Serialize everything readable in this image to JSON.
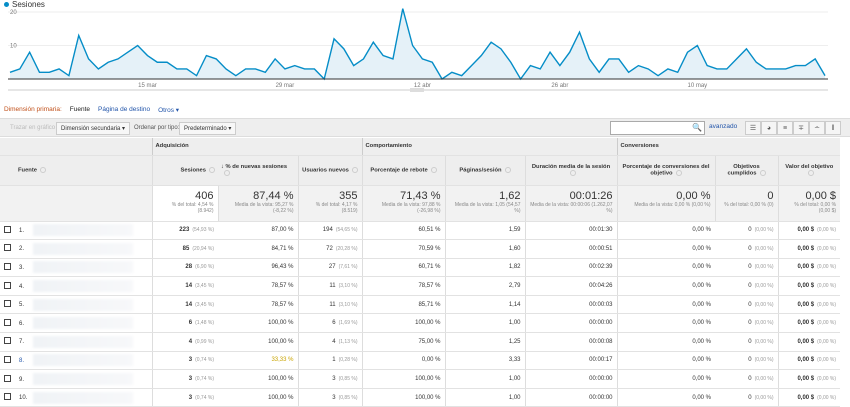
{
  "chart_data": {
    "type": "area",
    "series": [
      {
        "name": "Sesiones",
        "color": "#058dc7",
        "values": [
          2,
          3,
          8,
          2,
          2,
          3,
          1,
          13,
          6,
          3,
          5,
          6,
          8,
          10,
          7,
          5,
          5,
          3,
          3,
          1,
          7,
          6,
          3,
          1,
          3,
          3,
          2,
          6,
          3,
          4,
          3,
          3,
          0,
          12,
          9,
          4,
          6,
          11,
          7,
          6,
          21,
          10,
          6,
          5,
          0,
          2,
          1,
          4,
          7,
          11,
          9,
          5,
          0,
          4,
          3,
          8,
          4,
          8,
          14,
          6,
          2,
          6,
          6,
          2,
          4,
          3,
          1,
          3,
          2,
          8,
          10,
          4,
          3,
          3,
          6,
          9,
          5,
          3,
          3,
          3,
          4,
          4,
          6,
          1
        ]
      }
    ],
    "x_start": "1 mar",
    "x_end": "23 may",
    "x_ticks": [
      "15 mar",
      "29 mar",
      "12 abr",
      "26 abr",
      "10 may"
    ],
    "y_ticks": [
      "10",
      "20"
    ],
    "ylim": [
      0,
      20
    ],
    "grid": true,
    "legend": "top-left"
  },
  "dimension": {
    "label": "Dimensión primaria:",
    "current": "Fuente",
    "links": [
      "Página de destino",
      "Otros ▾"
    ]
  },
  "toolbar": {
    "plot": "Trazar en gráfico",
    "secondary": "Dimensión secundaria ▾",
    "sort_label": "Ordenar por tipo:",
    "sort_value": "Predeterminado ▾",
    "search_placeholder": "",
    "advanced": "avanzado",
    "search_icon": "magnifier"
  },
  "groups": [
    "Adquisición",
    "Comportamiento",
    "Conversiones"
  ],
  "columns": [
    "Fuente",
    "Sesiones",
    "% de nuevas sesiones",
    "Usuarios nuevos",
    "Porcentaje de rebote",
    "Páginas/sesión",
    "Duración media de la sesión",
    "Porcentaje de conversiones del objetivo",
    "Objetivos cumplidos",
    "Valor del objetivo"
  ],
  "totals": [
    {
      "v": "406",
      "s": "% del total: 4,54 % (8.942)"
    },
    {
      "v": "87,44 %",
      "s": "Media de la vista: 95,27 % (-8,22 %)"
    },
    {
      "v": "355",
      "s": "% del total: 4,17 % (8.519)"
    },
    {
      "v": "71,43 %",
      "s": "Media de la vista: 97,88 % (-26,98 %)"
    },
    {
      "v": "1,62",
      "s": "Media de la vista: 1,05 (54,57 %)"
    },
    {
      "v": "00:01:26",
      "s": "Media de la vista: 00:00:06 (1.262,07 %)"
    },
    {
      "v": "0,00 %",
      "s": "Media de la vista: 0,00 % (0,00 %)"
    },
    {
      "v": "0",
      "s": "% del total: 0,00 % (0)"
    },
    {
      "v": "0,00 $",
      "s": "% del total: 0,00 % (0,00 $)"
    }
  ],
  "rows": [
    {
      "i": "1.",
      "ses": "223",
      "sesp": "(54,93 %)",
      "nue": "87,00 %",
      "usr": "194",
      "usrp": "(54,65 %)",
      "reb": "60,51 %",
      "pag": "1,59",
      "dur": "00:01:30",
      "conv": "0,00 %",
      "obj": "0",
      "objp": "(0,00 %)",
      "val": "0,00 $",
      "valp": "(0,00 %)"
    },
    {
      "i": "2.",
      "ses": "85",
      "sesp": "(20,94 %)",
      "nue": "84,71 %",
      "usr": "72",
      "usrp": "(20,28 %)",
      "reb": "70,59 %",
      "pag": "1,60",
      "dur": "00:00:51",
      "conv": "0,00 %",
      "obj": "0",
      "objp": "(0,00 %)",
      "val": "0,00 $",
      "valp": "(0,00 %)"
    },
    {
      "i": "3.",
      "ses": "28",
      "sesp": "(6,90 %)",
      "nue": "96,43 %",
      "usr": "27",
      "usrp": "(7,61 %)",
      "reb": "60,71 %",
      "pag": "1,82",
      "dur": "00:02:39",
      "conv": "0,00 %",
      "obj": "0",
      "objp": "(0,00 %)",
      "val": "0,00 $",
      "valp": "(0,00 %)"
    },
    {
      "i": "4.",
      "ses": "14",
      "sesp": "(3,45 %)",
      "nue": "78,57 %",
      "usr": "11",
      "usrp": "(3,10 %)",
      "reb": "78,57 %",
      "pag": "2,79",
      "dur": "00:04:26",
      "conv": "0,00 %",
      "obj": "0",
      "objp": "(0,00 %)",
      "val": "0,00 $",
      "valp": "(0,00 %)"
    },
    {
      "i": "5.",
      "ses": "14",
      "sesp": "(3,45 %)",
      "nue": "78,57 %",
      "usr": "11",
      "usrp": "(3,10 %)",
      "reb": "85,71 %",
      "pag": "1,14",
      "dur": "00:00:03",
      "conv": "0,00 %",
      "obj": "0",
      "objp": "(0,00 %)",
      "val": "0,00 $",
      "valp": "(0,00 %)"
    },
    {
      "i": "6.",
      "ses": "6",
      "sesp": "(1,48 %)",
      "nue": "100,00 %",
      "usr": "6",
      "usrp": "(1,69 %)",
      "reb": "100,00 %",
      "pag": "1,00",
      "dur": "00:00:00",
      "conv": "0,00 %",
      "obj": "0",
      "objp": "(0,00 %)",
      "val": "0,00 $",
      "valp": "(0,00 %)"
    },
    {
      "i": "7.",
      "ses": "4",
      "sesp": "(0,99 %)",
      "nue": "100,00 %",
      "usr": "4",
      "usrp": "(1,13 %)",
      "reb": "75,00 %",
      "pag": "1,25",
      "dur": "00:00:08",
      "conv": "0,00 %",
      "obj": "0",
      "objp": "(0,00 %)",
      "val": "0,00 $",
      "valp": "(0,00 %)"
    },
    {
      "i": "8.",
      "ses": "3",
      "sesp": "(0,74 %)",
      "nue": "33,33 %",
      "usr": "1",
      "usrp": "(0,28 %)",
      "reb": "0,00 %",
      "pag": "3,33",
      "dur": "00:00:17",
      "conv": "0,00 %",
      "obj": "0",
      "objp": "(0,00 %)",
      "val": "0,00 $",
      "valp": "(0,00 %)"
    },
    {
      "i": "9.",
      "ses": "3",
      "sesp": "(0,74 %)",
      "nue": "100,00 %",
      "usr": "3",
      "usrp": "(0,85 %)",
      "reb": "100,00 %",
      "pag": "1,00",
      "dur": "00:00:00",
      "conv": "0,00 %",
      "obj": "0",
      "objp": "(0,00 %)",
      "val": "0,00 $",
      "valp": "(0,00 %)"
    },
    {
      "i": "10.",
      "ses": "3",
      "sesp": "(0,74 %)",
      "nue": "100,00 %",
      "usr": "3",
      "usrp": "(0,85 %)",
      "reb": "100,00 %",
      "pag": "1,00",
      "dur": "00:00:00",
      "conv": "0,00 %",
      "obj": "0",
      "objp": "(0,00 %)",
      "val": "0,00 $",
      "valp": "(0,00 %)"
    }
  ]
}
